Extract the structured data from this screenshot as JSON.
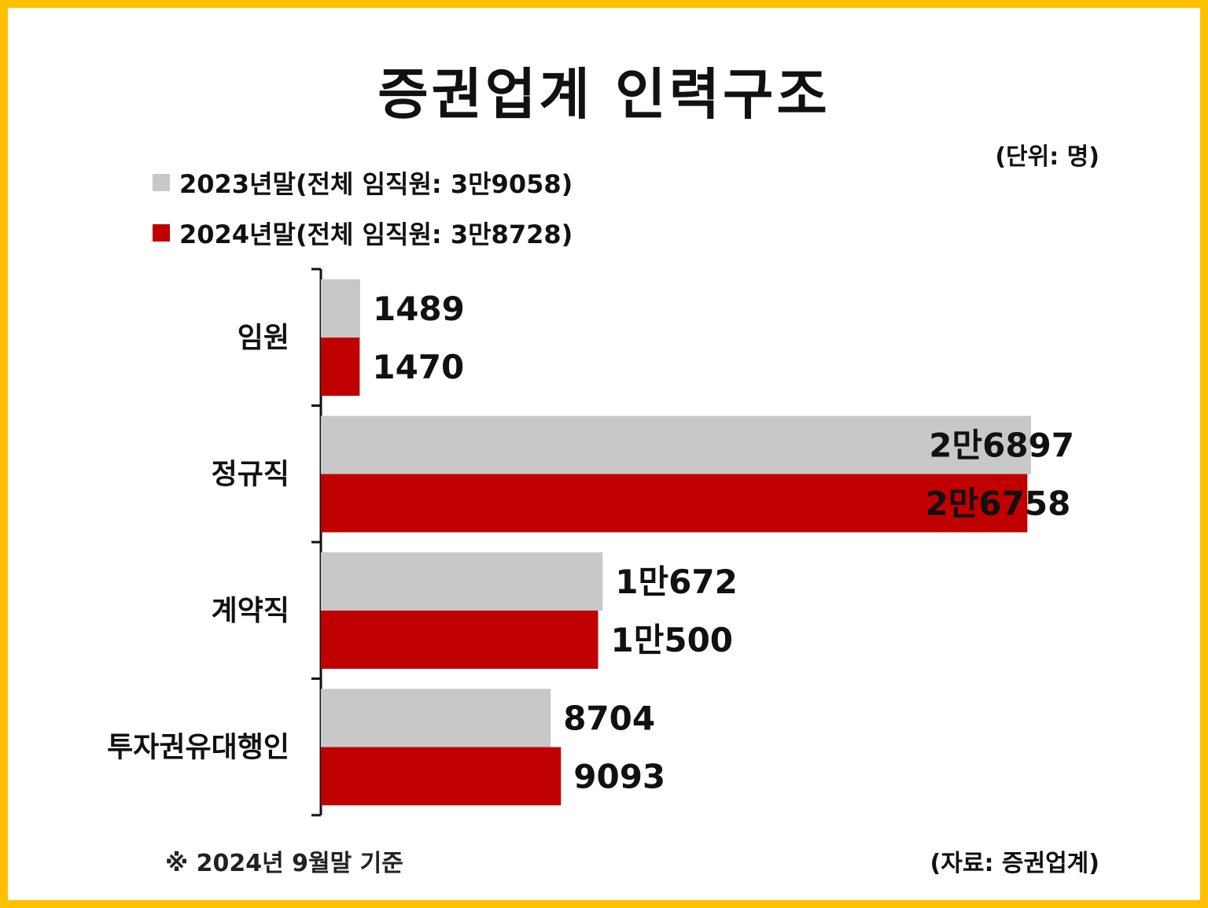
{
  "chart_data": {
    "type": "bar",
    "orientation": "horizontal",
    "title": "증권업계 인력구조",
    "unit_note": "(단위: 명)",
    "categories": [
      "임원",
      "정규직",
      "계약직",
      "투자권유대행인"
    ],
    "series": [
      {
        "name": "2023년말(전체 임직원: 3만9058)",
        "color": "#c8c8c8",
        "values": [
          1489,
          26897,
          10672,
          8704
        ],
        "labels": [
          "1489",
          "2만6897",
          "1만672",
          "8704"
        ]
      },
      {
        "name": "2024년말(전체 임직원: 3만8728)",
        "color": "#c00000",
        "values": [
          1470,
          26758,
          10500,
          9093
        ],
        "labels": [
          "1470",
          "2만6758",
          "1만500",
          "9093"
        ]
      }
    ],
    "legend_position": "top-left",
    "grid": false
  },
  "footnote": "※ 2024년 9월말 기준",
  "source": "(자료: 증권업계)"
}
